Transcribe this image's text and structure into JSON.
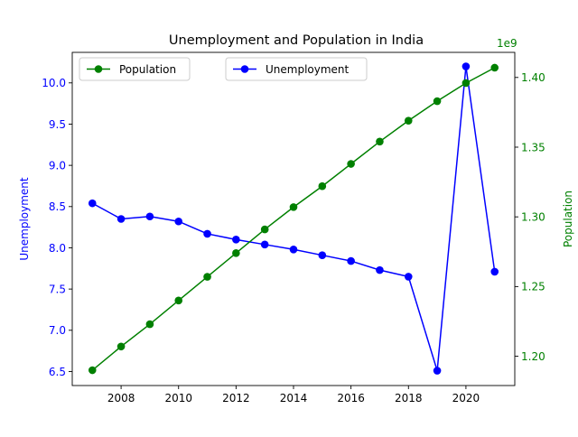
{
  "chart_data": {
    "type": "line",
    "title": "Unemployment and Population in India",
    "x": [
      2007,
      2008,
      2009,
      2010,
      2011,
      2012,
      2013,
      2014,
      2015,
      2016,
      2017,
      2018,
      2019,
      2020,
      2021
    ],
    "xlim": [
      2006.3,
      2021.7
    ],
    "xticks": [
      2008,
      2010,
      2012,
      2014,
      2016,
      2018,
      2020
    ],
    "left_axis": {
      "label": "Unemployment",
      "color": "#0000ff",
      "ylim": [
        6.33,
        10.37
      ],
      "ticks": [
        "6.5",
        "7.0",
        "7.5",
        "8.0",
        "8.5",
        "9.0",
        "9.5",
        "10.0"
      ]
    },
    "right_axis": {
      "label": "Population",
      "color": "#008000",
      "ylim": [
        1.179,
        1.418
      ],
      "ticks": [
        "1.20",
        "1.25",
        "1.30",
        "1.35",
        "1.40"
      ],
      "offset_text": "1e9"
    },
    "series": [
      {
        "name": "Unemployment",
        "axis": "left",
        "color": "#0000ff",
        "values": [
          8.54,
          8.35,
          8.38,
          8.32,
          8.17,
          8.1,
          8.04,
          7.98,
          7.91,
          7.84,
          7.73,
          7.65,
          6.51,
          10.2,
          7.71
        ]
      },
      {
        "name": "Population",
        "axis": "right",
        "color": "#008000",
        "values": [
          1.19,
          1.207,
          1.223,
          1.24,
          1.257,
          1.274,
          1.291,
          1.307,
          1.322,
          1.338,
          1.354,
          1.369,
          1.383,
          1.396,
          1.407
        ]
      }
    ],
    "legends": [
      {
        "placement": "upper-left",
        "entries": [
          "Population"
        ]
      },
      {
        "placement": "upper-center",
        "entries": [
          "Unemployment"
        ]
      }
    ],
    "grid": false
  }
}
